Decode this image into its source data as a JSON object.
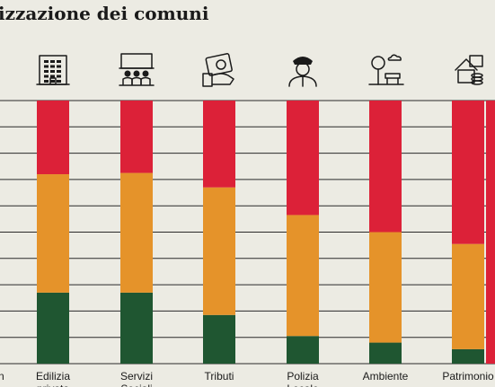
{
  "title": "izzazione dei comuni",
  "chart_data": {
    "type": "bar",
    "stacked": "percent",
    "categories": [
      {
        "label": [
          "Edilizia",
          "privata"
        ],
        "icon": "office-building-icon"
      },
      {
        "label": [
          "Servizi",
          "Sociali"
        ],
        "icon": "social-services-icon"
      },
      {
        "label": [
          "Tributi"
        ],
        "icon": "taxes-icon"
      },
      {
        "label": [
          "Polizia",
          "Locale"
        ],
        "icon": "police-officer-icon"
      },
      {
        "label": [
          "Ambiente"
        ],
        "icon": "environment-icon"
      },
      {
        "label": [
          "Patrimonio"
        ],
        "icon": "property-icon"
      }
    ],
    "series": [
      {
        "color": "#1f5631",
        "values": [
          27,
          27,
          18.5,
          10.5,
          8,
          5.5
        ]
      },
      {
        "color": "#e5932a",
        "values": [
          45,
          45.5,
          48.5,
          46,
          42,
          40
        ]
      },
      {
        "color": "#dc2138",
        "values": [
          28,
          27.5,
          33,
          43.5,
          50,
          54.5
        ]
      }
    ],
    "ylim": [
      0,
      100
    ],
    "grid": true,
    "colors": {
      "background": "#ecebe3",
      "grid": "#2a2a2a",
      "text": "#1a1a1a"
    }
  }
}
